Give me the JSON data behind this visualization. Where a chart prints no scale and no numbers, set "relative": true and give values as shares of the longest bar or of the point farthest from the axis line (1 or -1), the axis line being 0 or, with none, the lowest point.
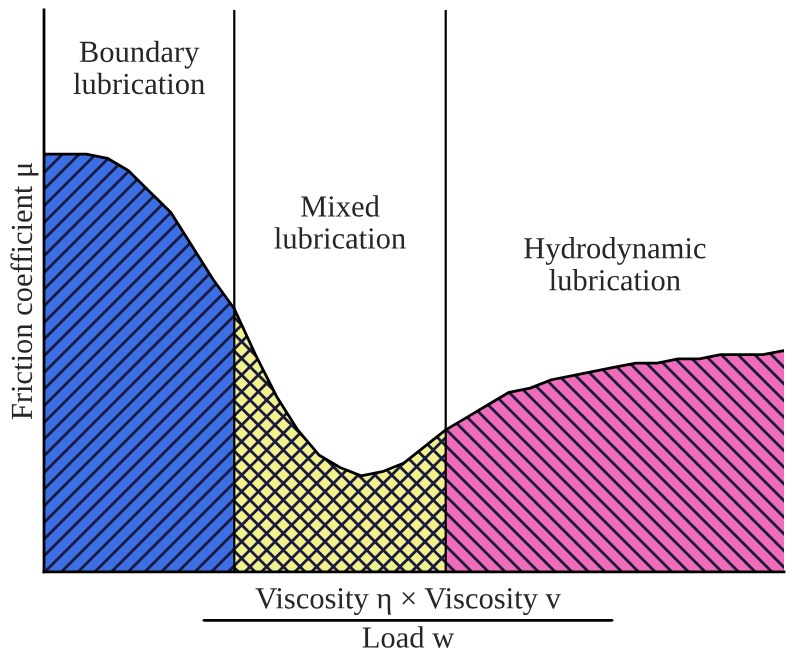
{
  "chart_data": {
    "type": "area",
    "relative": true,
    "xlabel": "Viscosity η × Viscosity v",
    "ylabel": "Friction coefficient μ",
    "annotations": [
      "Load w"
    ],
    "legend": false,
    "categories": [
      null,
      null,
      null,
      null,
      null,
      null,
      null,
      null,
      null,
      null,
      null,
      null,
      null,
      null,
      null,
      null,
      null,
      null,
      null,
      null,
      null,
      null,
      null,
      null,
      null,
      null,
      null,
      null,
      null,
      null,
      null,
      null,
      null,
      null,
      null,
      null
    ],
    "series": [
      {
        "name": "Boundary lubrication",
        "color": "#3b6fe3",
        "values": [
          1.0,
          1.0,
          1.0,
          0.99,
          0.96,
          0.91,
          0.86,
          0.78,
          0.7,
          0.63,
          null,
          null,
          null,
          null,
          null,
          null,
          null,
          null,
          null,
          null,
          null,
          null,
          null,
          null,
          null,
          null,
          null,
          null,
          null,
          null,
          null,
          null,
          null,
          null,
          null,
          null
        ]
      },
      {
        "name": "Mixed lubrication",
        "color": "#f2f28c",
        "values": [
          null,
          null,
          null,
          null,
          null,
          null,
          null,
          null,
          null,
          0.63,
          0.52,
          0.42,
          0.34,
          0.28,
          0.25,
          0.23,
          0.24,
          0.26,
          0.3,
          0.34,
          null,
          null,
          null,
          null,
          null,
          null,
          null,
          null,
          null,
          null,
          null,
          null,
          null,
          null,
          null,
          null
        ]
      },
      {
        "name": "Hydrodynamic lubrication",
        "color": "#f06cb8",
        "values": [
          null,
          null,
          null,
          null,
          null,
          null,
          null,
          null,
          null,
          null,
          null,
          null,
          null,
          null,
          null,
          null,
          null,
          null,
          null,
          0.34,
          0.37,
          0.4,
          0.43,
          0.44,
          0.46,
          0.47,
          0.48,
          0.49,
          0.5,
          0.5,
          0.51,
          0.51,
          0.52,
          0.52,
          0.52,
          0.53
        ]
      }
    ]
  }
}
